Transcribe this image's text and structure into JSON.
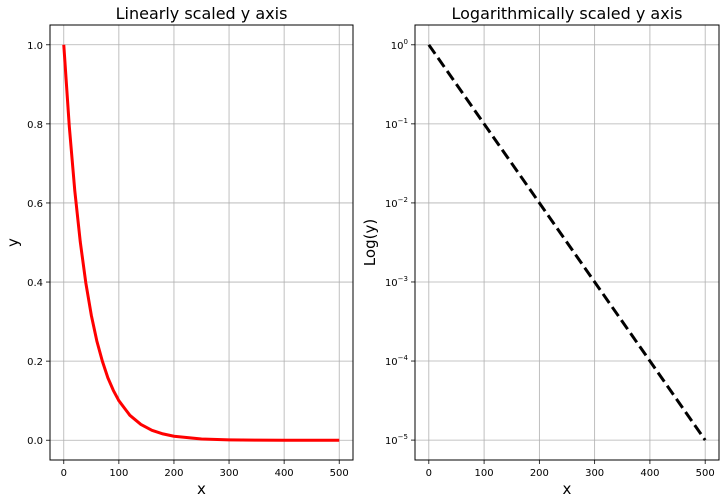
{
  "chart_data": [
    {
      "type": "line",
      "title": "Linearly scaled y axis",
      "xlabel": "x",
      "ylabel": "y",
      "yscale": "linear",
      "grid": true,
      "xlim": [
        -25,
        525
      ],
      "ylim": [
        -0.05,
        1.05
      ],
      "xticks": [
        0,
        100,
        200,
        300,
        400,
        500
      ],
      "xtick_labels": [
        "0",
        "100",
        "200",
        "300",
        "400",
        "500"
      ],
      "yticks": [
        0.0,
        0.2,
        0.4,
        0.6,
        0.8,
        1.0
      ],
      "ytick_labels": [
        "0.0",
        "0.2",
        "0.4",
        "0.6",
        "0.8",
        "1.0"
      ],
      "series": [
        {
          "color": "#ff0000",
          "style": "solid",
          "x": [
            0,
            10,
            20,
            30,
            40,
            50,
            60,
            70,
            80,
            90,
            100,
            120,
            140,
            160,
            180,
            200,
            250,
            300,
            350,
            400,
            450,
            500
          ],
          "y": [
            1.0,
            0.794,
            0.631,
            0.501,
            0.398,
            0.316,
            0.251,
            0.2,
            0.158,
            0.126,
            0.1,
            0.063,
            0.04,
            0.025,
            0.016,
            0.01,
            0.003,
            0.001,
            0.0003,
            0.0001,
            3e-05,
            1e-05
          ]
        }
      ]
    },
    {
      "type": "line",
      "title": "Logarithmically scaled y axis",
      "xlabel": "x",
      "ylabel": "Log(y)",
      "yscale": "log",
      "grid": true,
      "xlim": [
        -25,
        525
      ],
      "ylim": [
        5.6e-06,
        1.78
      ],
      "xticks": [
        0,
        100,
        200,
        300,
        400,
        500
      ],
      "xtick_labels": [
        "0",
        "100",
        "200",
        "300",
        "400",
        "500"
      ],
      "yticks": [
        1,
        0.1,
        0.01,
        0.001,
        0.0001,
        1e-05
      ],
      "ytick_labels": [
        {
          "base": "10",
          "exp": "0"
        },
        {
          "base": "10",
          "exp": "−1"
        },
        {
          "base": "10",
          "exp": "−2"
        },
        {
          "base": "10",
          "exp": "−3"
        },
        {
          "base": "10",
          "exp": "−4"
        },
        {
          "base": "10",
          "exp": "−5"
        }
      ],
      "series": [
        {
          "color": "#000000",
          "style": "dashed",
          "x": [
            0,
            100,
            200,
            300,
            400,
            500
          ],
          "y": [
            1.0,
            0.1,
            0.01,
            0.001,
            0.0001,
            1e-05
          ]
        }
      ]
    }
  ]
}
